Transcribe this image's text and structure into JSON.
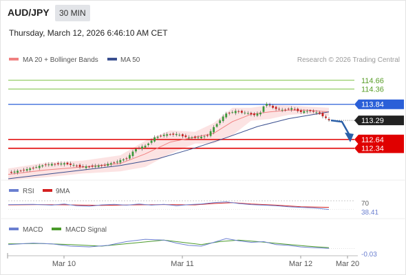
{
  "header": {
    "pair": "AUD/JPY",
    "timeframe": "30 MIN",
    "datetime": "Thursday, March 12, 2026 6:46:10 AM CET"
  },
  "legend": {
    "ma20_label": "MA 20 + Bollinger Bands",
    "ma50_label": "MA 50",
    "credit": "Research © 2026 Trading Central"
  },
  "colors": {
    "resistance": "#e00000",
    "pivot": "#2a5fd8",
    "target": "#7cc242",
    "ma20": "#f08080",
    "ma50": "#3a4f8f",
    "rsi": "#6a7fd0",
    "rsi_ma": "#d42020",
    "macd": "#6a7fd0",
    "macd_signal": "#4a9a2a",
    "candle_up": "#3a9a3a",
    "candle_down": "#c82020"
  },
  "chart_data": [
    {
      "type": "candlestick",
      "x_ticks": [
        "Mar 10",
        "Mar 11",
        "Mar 12",
        "Mar 20"
      ],
      "ylim": [
        111.3,
        115.1
      ],
      "levels": [
        {
          "value": 114.66,
          "label": "114.66",
          "kind": "target"
        },
        {
          "value": 114.36,
          "label": "114.36",
          "kind": "target"
        },
        {
          "value": 113.84,
          "label": "113.84",
          "kind": "pivot"
        },
        {
          "value": 113.29,
          "label": "113.29",
          "kind": "last"
        },
        {
          "value": 112.64,
          "label": "112.64",
          "kind": "support"
        },
        {
          "value": 112.34,
          "label": "112.34",
          "kind": "support"
        }
      ],
      "last_price": 113.29,
      "forecast": {
        "from": 113.29,
        "to": 112.64,
        "direction": "down"
      },
      "close_path": [
        [
          0,
          111.5
        ],
        [
          6,
          111.62
        ],
        [
          12,
          111.78
        ],
        [
          18,
          111.82
        ],
        [
          24,
          111.7
        ],
        [
          30,
          111.75
        ],
        [
          34,
          111.85
        ],
        [
          38,
          112.0
        ],
        [
          41,
          112.32
        ],
        [
          44,
          112.42
        ],
        [
          47,
          112.7
        ],
        [
          50,
          112.8
        ],
        [
          54,
          112.82
        ],
        [
          58,
          112.7
        ],
        [
          62,
          112.72
        ],
        [
          64,
          112.78
        ],
        [
          66,
          113.05
        ],
        [
          68,
          113.3
        ],
        [
          70,
          113.52
        ],
        [
          73,
          113.6
        ],
        [
          76,
          113.55
        ],
        [
          79,
          113.48
        ],
        [
          81,
          113.55
        ],
        [
          82,
          113.78
        ],
        [
          83,
          113.86
        ],
        [
          85,
          113.72
        ],
        [
          88,
          113.64
        ],
        [
          91,
          113.7
        ],
        [
          94,
          113.58
        ],
        [
          97,
          113.62
        ],
        [
          100,
          113.52
        ],
        [
          103,
          113.29
        ]
      ],
      "ma20_path": [
        [
          0,
          111.45
        ],
        [
          12,
          111.6
        ],
        [
          24,
          111.7
        ],
        [
          36,
          111.82
        ],
        [
          44,
          112.15
        ],
        [
          52,
          112.55
        ],
        [
          60,
          112.72
        ],
        [
          66,
          112.85
        ],
        [
          72,
          113.25
        ],
        [
          78,
          113.5
        ],
        [
          84,
          113.58
        ],
        [
          90,
          113.64
        ],
        [
          96,
          113.64
        ],
        [
          103,
          113.58
        ]
      ],
      "ma50_path": [
        [
          0,
          111.3
        ],
        [
          12,
          111.45
        ],
        [
          24,
          111.6
        ],
        [
          36,
          111.75
        ],
        [
          48,
          111.98
        ],
        [
          60,
          112.35
        ],
        [
          70,
          112.7
        ],
        [
          80,
          113.08
        ],
        [
          90,
          113.35
        ],
        [
          103,
          113.58
        ]
      ],
      "bollinger_upper": [
        [
          0,
          111.65
        ],
        [
          12,
          111.85
        ],
        [
          24,
          111.92
        ],
        [
          36,
          112.1
        ],
        [
          44,
          112.6
        ],
        [
          52,
          112.95
        ],
        [
          60,
          112.9
        ],
        [
          66,
          113.2
        ],
        [
          72,
          113.72
        ],
        [
          78,
          113.72
        ],
        [
          84,
          113.82
        ],
        [
          90,
          113.8
        ],
        [
          96,
          113.76
        ],
        [
          103,
          113.72
        ]
      ],
      "bollinger_lower": [
        [
          0,
          111.25
        ],
        [
          12,
          111.35
        ],
        [
          24,
          111.48
        ],
        [
          36,
          111.55
        ],
        [
          44,
          111.7
        ],
        [
          52,
          112.15
        ],
        [
          60,
          112.5
        ],
        [
          66,
          112.5
        ],
        [
          72,
          112.78
        ],
        [
          78,
          113.28
        ],
        [
          84,
          113.34
        ],
        [
          90,
          113.48
        ],
        [
          96,
          113.52
        ],
        [
          103,
          113.44
        ]
      ]
    },
    {
      "type": "line",
      "name_label": "RSI",
      "ma_label": "9MA",
      "ylim": [
        0,
        100
      ],
      "levels": [
        {
          "value": 70,
          "label": "70"
        }
      ],
      "last_value_label": "38.41",
      "rsi_path": [
        [
          0,
          56
        ],
        [
          8,
          57
        ],
        [
          14,
          54
        ],
        [
          18,
          58
        ],
        [
          22,
          52
        ],
        [
          26,
          50
        ],
        [
          30,
          55
        ],
        [
          34,
          57
        ],
        [
          38,
          54
        ],
        [
          42,
          58
        ],
        [
          46,
          54
        ],
        [
          50,
          57
        ],
        [
          54,
          52
        ],
        [
          58,
          56
        ],
        [
          62,
          58
        ],
        [
          66,
          63
        ],
        [
          70,
          66
        ],
        [
          74,
          60
        ],
        [
          78,
          56
        ],
        [
          82,
          54
        ],
        [
          86,
          52
        ],
        [
          90,
          48
        ],
        [
          94,
          46
        ],
        [
          98,
          44
        ],
        [
          103,
          38.41
        ]
      ],
      "rsi_ma_path": [
        [
          0,
          55
        ],
        [
          10,
          56
        ],
        [
          20,
          55
        ],
        [
          30,
          53
        ],
        [
          40,
          55
        ],
        [
          50,
          56
        ],
        [
          60,
          55
        ],
        [
          66,
          60
        ],
        [
          72,
          63
        ],
        [
          78,
          58
        ],
        [
          86,
          54
        ],
        [
          94,
          48
        ],
        [
          103,
          46
        ]
      ]
    },
    {
      "type": "line",
      "name_label": "MACD",
      "signal_label": "MACD Signal",
      "last_value_label": "-0.03",
      "macd_path": [
        [
          0,
          0.02
        ],
        [
          8,
          0.04
        ],
        [
          14,
          0.03
        ],
        [
          20,
          0.0
        ],
        [
          26,
          -0.01
        ],
        [
          32,
          0.01
        ],
        [
          38,
          0.06
        ],
        [
          44,
          0.09
        ],
        [
          50,
          0.08
        ],
        [
          54,
          0.04
        ],
        [
          58,
          0.01
        ],
        [
          62,
          0.0
        ],
        [
          66,
          0.05
        ],
        [
          70,
          0.1
        ],
        [
          74,
          0.07
        ],
        [
          78,
          0.05
        ],
        [
          82,
          0.06
        ],
        [
          86,
          0.02
        ],
        [
          90,
          0.01
        ],
        [
          94,
          -0.01
        ],
        [
          98,
          -0.02
        ],
        [
          103,
          -0.03
        ]
      ],
      "signal_path": [
        [
          0,
          0.03
        ],
        [
          10,
          0.035
        ],
        [
          20,
          0.02
        ],
        [
          30,
          0.0
        ],
        [
          40,
          0.04
        ],
        [
          50,
          0.08
        ],
        [
          56,
          0.05
        ],
        [
          62,
          0.02
        ],
        [
          68,
          0.06
        ],
        [
          74,
          0.08
        ],
        [
          80,
          0.06
        ],
        [
          88,
          0.03
        ],
        [
          96,
          0.0
        ],
        [
          103,
          -0.02
        ]
      ]
    }
  ]
}
